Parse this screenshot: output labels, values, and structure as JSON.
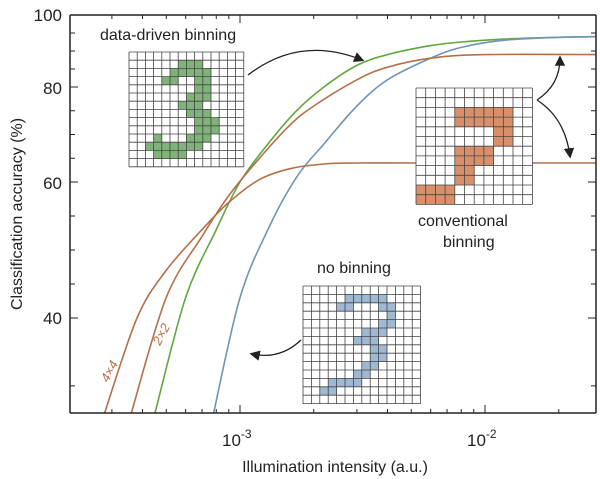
{
  "colors": {
    "data_driven": "#5fa83e",
    "conventional": "#b5704a",
    "no_binning": "#6f95b5",
    "fill_green": "#7fb37a",
    "fill_orange": "#d9906a",
    "fill_blue": "#9fb9d3"
  },
  "chart_data": {
    "type": "line",
    "title": "",
    "xlabel": "Illumination intensity (a.u.)",
    "ylabel": "Classification accuracy (%)",
    "xscale": "log",
    "yscale": "nonlinear",
    "xlim": [
      0.00026,
      0.03
    ],
    "ylim": [
      33,
      100
    ],
    "yticks": [
      40,
      60,
      80,
      100
    ],
    "xtick_labels": [
      "10",
      "-3",
      "10",
      "-2"
    ],
    "grid": false,
    "series": [
      {
        "name": "data-driven binning",
        "color": "#5fa83e",
        "x": [
          0.00045,
          0.0006,
          0.0008,
          0.001,
          0.0013,
          0.0017,
          0.0022,
          0.003,
          0.004,
          0.006,
          0.008,
          0.012,
          0.02,
          0.03
        ],
        "y": [
          33,
          43,
          53,
          60,
          68,
          75,
          80,
          86,
          89,
          91.5,
          92.5,
          93.3,
          93.8,
          94
        ]
      },
      {
        "name": "no binning",
        "color": "#6f95b5",
        "x": [
          0.00078,
          0.001,
          0.0013,
          0.0017,
          0.0022,
          0.003,
          0.004,
          0.006,
          0.008,
          0.012,
          0.02,
          0.03
        ],
        "y": [
          33,
          43,
          53,
          61,
          68,
          76,
          82,
          88,
          91,
          93,
          93.8,
          94
        ]
      },
      {
        "name": "2×2",
        "color": "#b5704a",
        "x": [
          0.00036,
          0.0005,
          0.0007,
          0.0009,
          0.0012,
          0.0016,
          0.002,
          0.003,
          0.004,
          0.006,
          0.01,
          0.03
        ],
        "y": [
          33,
          43,
          52,
          58,
          65,
          72,
          76,
          82,
          85.5,
          88,
          89,
          89
        ]
      },
      {
        "name": "4×4",
        "color": "#b5704a",
        "x": [
          0.00028,
          0.00038,
          0.0005,
          0.0007,
          0.0009,
          0.0012,
          0.0016,
          0.0022,
          0.003,
          0.005,
          0.01,
          0.03
        ],
        "y": [
          33,
          40,
          47,
          53,
          57,
          60.5,
          62.8,
          63.8,
          64,
          64,
          64,
          64
        ]
      }
    ]
  },
  "annotations": {
    "data_driven": "data-driven binning",
    "conventional_1": "conventional",
    "conventional_2": "binning",
    "no_binning": "no binning"
  }
}
